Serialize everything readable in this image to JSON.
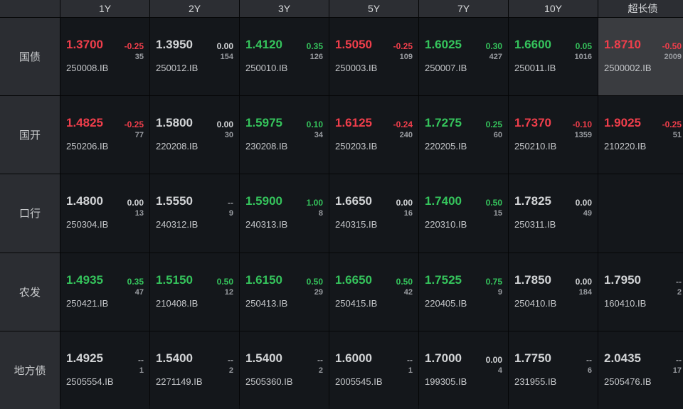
{
  "colors": {
    "up": "#f03e4b",
    "down": "#35c45c",
    "flat": "#d2d4d6",
    "selected_bg": "#3a3c40"
  },
  "columns": [
    "1Y",
    "2Y",
    "3Y",
    "5Y",
    "7Y",
    "10Y",
    "超长债"
  ],
  "rows": [
    {
      "label": "国债",
      "cells": [
        {
          "yield": "1.3700",
          "change": "-0.25",
          "volume": "35",
          "code": "250008.IB",
          "color": "red"
        },
        {
          "yield": "1.3950",
          "change": "0.00",
          "volume": "154",
          "code": "250012.IB",
          "color": "gray"
        },
        {
          "yield": "1.4120",
          "change": "0.35",
          "volume": "126",
          "code": "250010.IB",
          "color": "green"
        },
        {
          "yield": "1.5050",
          "change": "-0.25",
          "volume": "109",
          "code": "250003.IB",
          "color": "red"
        },
        {
          "yield": "1.6025",
          "change": "0.30",
          "volume": "427",
          "code": "250007.IB",
          "color": "green"
        },
        {
          "yield": "1.6600",
          "change": "0.05",
          "volume": "1016",
          "code": "250011.IB",
          "color": "green"
        },
        {
          "yield": "1.8710",
          "change": "-0.50",
          "volume": "2009",
          "code": "2500002.IB",
          "color": "red",
          "selected": true
        }
      ]
    },
    {
      "label": "国开",
      "cells": [
        {
          "yield": "1.4825",
          "change": "-0.25",
          "volume": "77",
          "code": "250206.IB",
          "color": "red"
        },
        {
          "yield": "1.5800",
          "change": "0.00",
          "volume": "30",
          "code": "220208.IB",
          "color": "gray"
        },
        {
          "yield": "1.5975",
          "change": "0.10",
          "volume": "34",
          "code": "230208.IB",
          "color": "green"
        },
        {
          "yield": "1.6125",
          "change": "-0.24",
          "volume": "240",
          "code": "250203.IB",
          "color": "red"
        },
        {
          "yield": "1.7275",
          "change": "0.25",
          "volume": "60",
          "code": "220205.IB",
          "color": "green"
        },
        {
          "yield": "1.7370",
          "change": "-0.10",
          "volume": "1359",
          "code": "250210.IB",
          "color": "red"
        },
        {
          "yield": "1.9025",
          "change": "-0.25",
          "volume": "51",
          "code": "210220.IB",
          "color": "red"
        }
      ]
    },
    {
      "label": "口行",
      "cells": [
        {
          "yield": "1.4800",
          "change": "0.00",
          "volume": "13",
          "code": "250304.IB",
          "color": "gray"
        },
        {
          "yield": "1.5550",
          "change": "--",
          "volume": "9",
          "code": "240312.IB",
          "color": "gray"
        },
        {
          "yield": "1.5900",
          "change": "1.00",
          "volume": "8",
          "code": "240313.IB",
          "color": "green"
        },
        {
          "yield": "1.6650",
          "change": "0.00",
          "volume": "16",
          "code": "240315.IB",
          "color": "gray"
        },
        {
          "yield": "1.7400",
          "change": "0.50",
          "volume": "15",
          "code": "220310.IB",
          "color": "green"
        },
        {
          "yield": "1.7825",
          "change": "0.00",
          "volume": "49",
          "code": "250311.IB",
          "color": "gray"
        },
        {
          "empty": true
        }
      ]
    },
    {
      "label": "农发",
      "cells": [
        {
          "yield": "1.4935",
          "change": "0.35",
          "volume": "47",
          "code": "250421.IB",
          "color": "green"
        },
        {
          "yield": "1.5150",
          "change": "0.50",
          "volume": "12",
          "code": "210408.IB",
          "color": "green"
        },
        {
          "yield": "1.6150",
          "change": "0.50",
          "volume": "29",
          "code": "250413.IB",
          "color": "green"
        },
        {
          "yield": "1.6650",
          "change": "0.50",
          "volume": "42",
          "code": "250415.IB",
          "color": "green"
        },
        {
          "yield": "1.7525",
          "change": "0.75",
          "volume": "9",
          "code": "220405.IB",
          "color": "green"
        },
        {
          "yield": "1.7850",
          "change": "0.00",
          "volume": "184",
          "code": "250410.IB",
          "color": "gray"
        },
        {
          "yield": "1.7950",
          "change": "--",
          "volume": "2",
          "code": "160410.IB",
          "color": "gray"
        }
      ]
    },
    {
      "label": "地方债",
      "cells": [
        {
          "yield": "1.4925",
          "change": "--",
          "volume": "1",
          "code": "2505554.IB",
          "color": "gray"
        },
        {
          "yield": "1.5400",
          "change": "--",
          "volume": "2",
          "code": "2271149.IB",
          "color": "gray"
        },
        {
          "yield": "1.5400",
          "change": "--",
          "volume": "2",
          "code": "2505360.IB",
          "color": "gray"
        },
        {
          "yield": "1.6000",
          "change": "--",
          "volume": "1",
          "code": "2005545.IB",
          "color": "gray"
        },
        {
          "yield": "1.7000",
          "change": "0.00",
          "volume": "4",
          "code": "199305.IB",
          "color": "gray"
        },
        {
          "yield": "1.7750",
          "change": "--",
          "volume": "6",
          "code": "231955.IB",
          "color": "gray"
        },
        {
          "yield": "2.0435",
          "change": "--",
          "volume": "17",
          "code": "2505476.IB",
          "color": "gray"
        }
      ]
    }
  ]
}
